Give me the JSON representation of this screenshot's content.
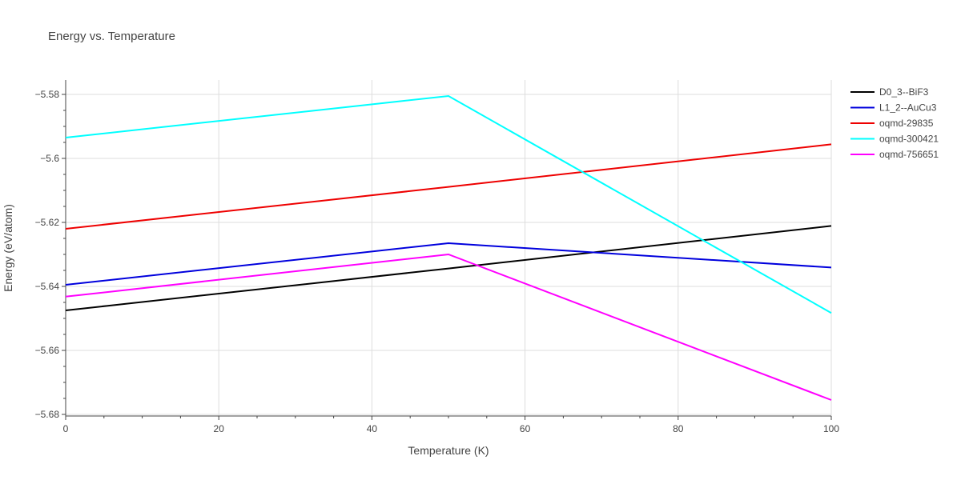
{
  "chart_data": {
    "type": "line",
    "title": "Energy vs. Temperature",
    "xlabel": "Temperature (K)",
    "ylabel": "Energy (eV/atom)",
    "xlim": [
      0,
      100
    ],
    "ylim": [
      -5.6805,
      -5.5755
    ],
    "x_ticks": [
      0,
      20,
      40,
      60,
      80,
      100
    ],
    "y_ticks": [
      -5.68,
      -5.66,
      -5.64,
      -5.62,
      -5.6,
      -5.58
    ],
    "x_tick_labels": [
      "0",
      "20",
      "40",
      "60",
      "80",
      "100"
    ],
    "y_tick_labels": [
      "−5.68",
      "−5.66",
      "−5.64",
      "−5.62",
      "−5.6",
      "−5.58"
    ],
    "legend_position": "top-right, outside plot",
    "grid": true,
    "series": [
      {
        "name": "D0_3--BiF3",
        "color": "#000000",
        "x": [
          0,
          50,
          100
        ],
        "y": [
          -5.6475,
          -5.6344,
          -5.6211
        ]
      },
      {
        "name": "L1_2--AuCu3",
        "color": "#0000dd",
        "x": [
          0,
          50,
          100
        ],
        "y": [
          -5.6395,
          -5.6265,
          -5.6341
        ]
      },
      {
        "name": "oqmd-29835",
        "color": "#ee0000",
        "x": [
          0,
          50,
          100
        ],
        "y": [
          -5.622,
          -5.6089,
          -5.5956
        ]
      },
      {
        "name": "oqmd-300421",
        "color": "#00ffff",
        "x": [
          0,
          50,
          100
        ],
        "y": [
          -5.5935,
          -5.5805,
          -5.6483
        ]
      },
      {
        "name": "oqmd-756651",
        "color": "#ff00ff",
        "x": [
          0,
          50,
          100
        ],
        "y": [
          -5.6432,
          -5.63,
          -5.6755
        ]
      }
    ]
  }
}
